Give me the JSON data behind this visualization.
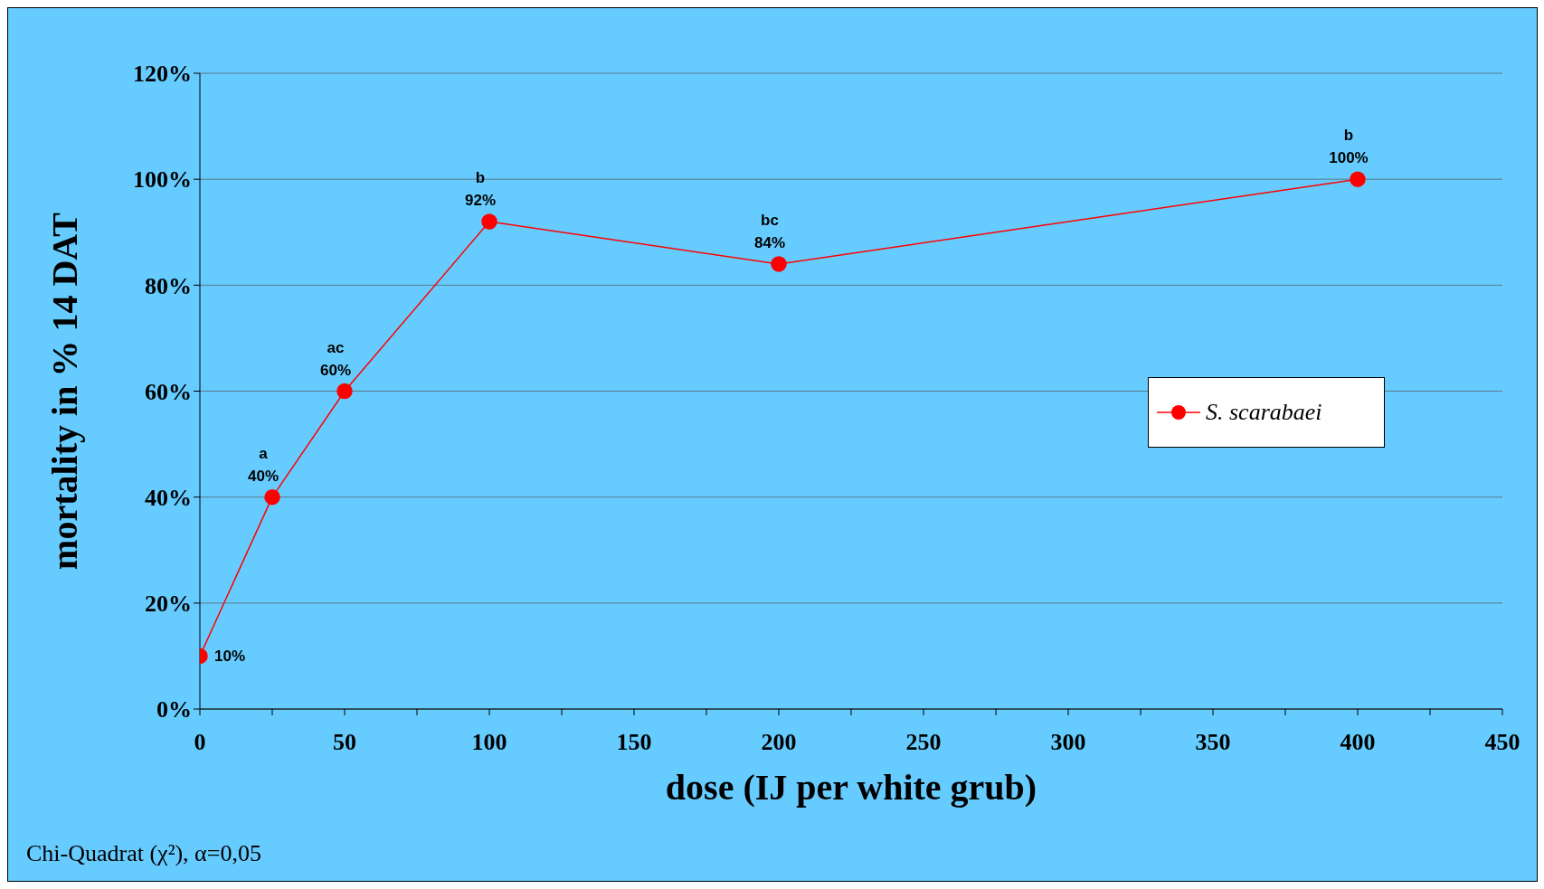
{
  "chart_data": {
    "type": "line",
    "xlabel": "dose (IJ per white grub)",
    "ylabel": "mortality in %  14 DAT",
    "x": [
      0,
      25,
      50,
      100,
      200,
      400
    ],
    "series": [
      {
        "name": "S. scarabaei",
        "color": "#ff0000",
        "values": [
          10,
          40,
          60,
          92,
          84,
          100
        ],
        "value_labels": [
          "10%",
          "40%",
          "60%",
          "92%",
          "84%",
          "100%"
        ]
      }
    ],
    "xlim": [
      0,
      450
    ],
    "xticks": [
      0,
      {
        "value": 25,
        "label": null
      },
      50,
      {
        "value": 75,
        "label": null
      },
      100,
      {
        "value": 125,
        "label": null
      },
      150,
      {
        "value": 175,
        "label": null
      },
      200,
      {
        "value": 225,
        "label": null
      },
      250,
      {
        "value": 275,
        "label": null
      },
      300,
      {
        "value": 325,
        "label": null
      },
      350,
      {
        "value": 375,
        "label": null
      },
      400,
      {
        "value": 425,
        "label": null
      },
      450
    ],
    "ylim": [
      0,
      120
    ],
    "yticks": [
      {
        "value": 0,
        "label": "0%"
      },
      {
        "value": 20,
        "label": "20%"
      },
      {
        "value": 40,
        "label": "40%"
      },
      {
        "value": 60,
        "label": "60%"
      },
      {
        "value": 80,
        "label": "80%"
      },
      {
        "value": 100,
        "label": "100%"
      },
      {
        "value": 120,
        "label": "120%"
      }
    ],
    "grid": "y",
    "legend": "right",
    "marker": "circle",
    "line_style": "solid",
    "annotations": [
      {
        "text": "a",
        "x": 25,
        "y": 40
      },
      {
        "text": "ac",
        "x": 50,
        "y": 60
      },
      {
        "text": "b",
        "x": 100,
        "y": 92
      },
      {
        "text": "bc",
        "x": 200,
        "y": 84
      },
      {
        "text": "b",
        "x": 400,
        "y": 100
      },
      "Chi-Quadrat (χ²), α=0,05"
    ]
  }
}
